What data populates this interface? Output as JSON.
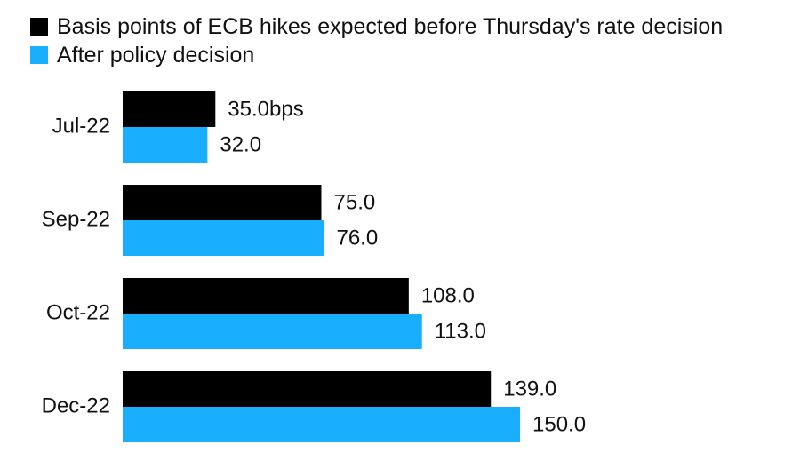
{
  "chart_data": {
    "type": "bar",
    "orientation": "horizontal",
    "categories": [
      "Jul-22",
      "Sep-22",
      "Oct-22",
      "Dec-22"
    ],
    "series": [
      {
        "name": "Basis points of ECB hikes expected before Thursday's rate decision",
        "color": "#000000",
        "values": [
          35.0,
          75.0,
          108.0,
          139.0
        ],
        "labels": [
          "35.0bps",
          "75.0",
          "108.0",
          "139.0"
        ]
      },
      {
        "name": "After policy decision",
        "color": "#1aaeff",
        "values": [
          32.0,
          76.0,
          113.0,
          150.0
        ],
        "labels": [
          "32.0",
          "76.0",
          "113.0",
          "150.0"
        ]
      }
    ],
    "xlim": [
      0,
      150
    ],
    "grid": false,
    "legend_position": "top-left"
  }
}
